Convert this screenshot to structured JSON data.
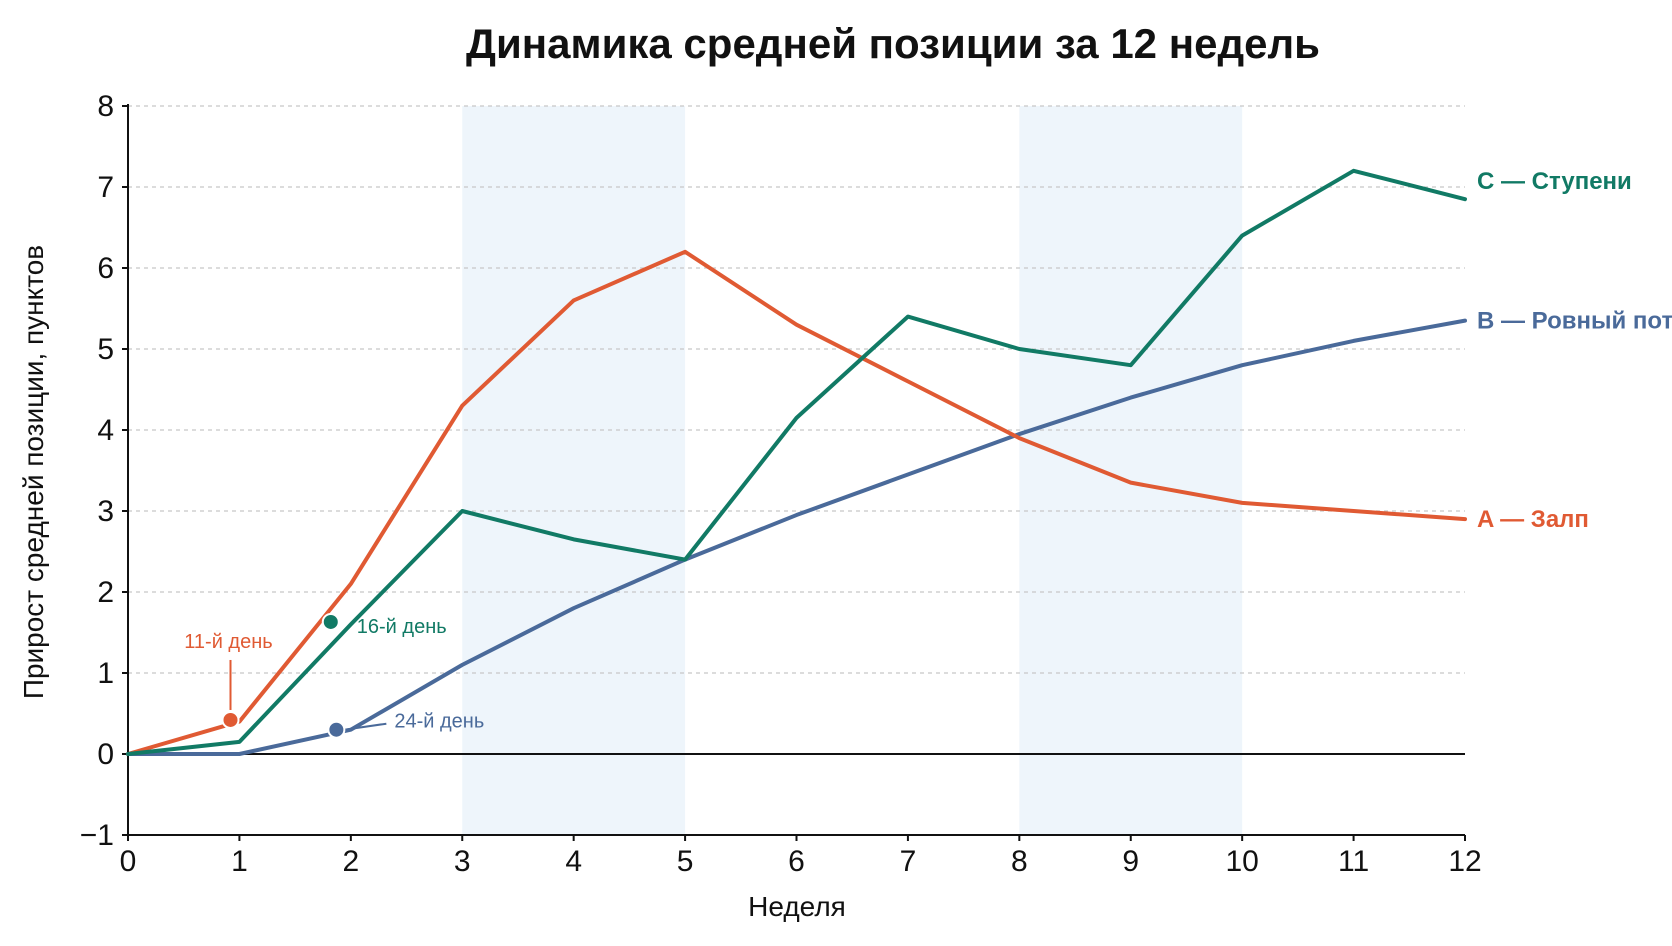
{
  "chart_data": {
    "type": "line",
    "title": "Динамика средней позиции за 12 недель",
    "xlabel": "Неделя",
    "ylabel": "Прирост средней позиции, пунктов",
    "xlim": [
      0,
      12
    ],
    "ylim": [
      -1,
      8
    ],
    "x_ticks": [
      "0",
      "1",
      "2",
      "3",
      "4",
      "5",
      "6",
      "7",
      "8",
      "9",
      "10",
      "11",
      "12"
    ],
    "y_ticks": [
      "−1",
      "0",
      "1",
      "2",
      "3",
      "4",
      "5",
      "6",
      "7",
      "8"
    ],
    "grid": "horizontal dashed",
    "shaded_x_ranges": [
      [
        3,
        5
      ],
      [
        8,
        10
      ]
    ],
    "series": [
      {
        "name": "A — Залп",
        "color": "#e05a33",
        "x": [
          0,
          1,
          2,
          3,
          4,
          5,
          6,
          7,
          8,
          9,
          10,
          11,
          12
        ],
        "y": [
          0,
          0.4,
          2.1,
          4.3,
          5.6,
          6.2,
          5.3,
          4.6,
          3.9,
          3.35,
          3.1,
          3.0,
          2.9
        ]
      },
      {
        "name": "B — Ровный поток",
        "color": "#4a6a9a",
        "x": [
          0,
          1,
          2,
          3,
          4,
          5,
          6,
          7,
          8,
          9,
          10,
          11,
          12
        ],
        "y": [
          0,
          0,
          0.3,
          1.1,
          1.8,
          2.4,
          2.95,
          3.45,
          3.95,
          4.4,
          4.8,
          5.1,
          5.35
        ]
      },
      {
        "name": "C — Ступени",
        "color": "#117a65",
        "x": [
          0,
          1,
          2,
          3,
          4,
          5,
          6,
          7,
          8,
          9,
          10,
          11,
          12
        ],
        "y": [
          0,
          0.15,
          1.6,
          3.0,
          2.65,
          2.4,
          4.15,
          5.4,
          5.0,
          4.8,
          6.4,
          7.2,
          6.85
        ]
      }
    ],
    "annotations": [
      {
        "text": "11-й день",
        "series": 0,
        "x": 0.92,
        "y": 0.42,
        "color": "#e05a33"
      },
      {
        "text": "16-й день",
        "series": 2,
        "x": 1.82,
        "y": 1.63,
        "color": "#117a65"
      },
      {
        "text": "24-й день",
        "series": 1,
        "x": 1.87,
        "y": 0.3,
        "color": "#4a6a9a"
      }
    ]
  }
}
